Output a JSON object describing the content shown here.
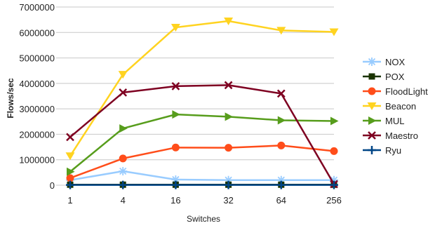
{
  "chart_data": {
    "type": "line",
    "xlabel": "Switches",
    "ylabel": "Flows/sec",
    "categories": [
      "1",
      "4",
      "16",
      "32",
      "64",
      "256"
    ],
    "ylim": [
      0,
      7000000
    ],
    "yticks": [
      "0",
      "1000000",
      "2000000",
      "3000000",
      "4000000",
      "5000000",
      "6000000",
      "7000000"
    ],
    "grid": "horizontal",
    "legend_position": "right",
    "series": [
      {
        "name": "NOX",
        "color": "#99ccff",
        "marker": "asterisk",
        "values": [
          200000,
          550000,
          220000,
          200000,
          200000,
          200000
        ]
      },
      {
        "name": "POX",
        "color": "#1a3300",
        "marker": "square",
        "values": [
          20000,
          20000,
          20000,
          20000,
          20000,
          20000
        ]
      },
      {
        "name": "FloodLight",
        "color": "#ff4d1a",
        "marker": "circle",
        "values": [
          280000,
          1050000,
          1480000,
          1470000,
          1560000,
          1340000
        ]
      },
      {
        "name": "Beacon",
        "color": "#ffd320",
        "marker": "triangle-down",
        "values": [
          1150000,
          4350000,
          6200000,
          6450000,
          6080000,
          6020000
        ]
      },
      {
        "name": "MUL",
        "color": "#579d1c",
        "marker": "triangle-right",
        "values": [
          530000,
          2230000,
          2780000,
          2690000,
          2550000,
          2520000
        ]
      },
      {
        "name": "Maestro",
        "color": "#7e0021",
        "marker": "x",
        "values": [
          1890000,
          3640000,
          3890000,
          3930000,
          3600000,
          40000
        ]
      },
      {
        "name": "Ryu",
        "color": "#004586",
        "marker": "plus",
        "values": [
          10000,
          10000,
          10000,
          10000,
          10000,
          10000
        ]
      }
    ]
  }
}
